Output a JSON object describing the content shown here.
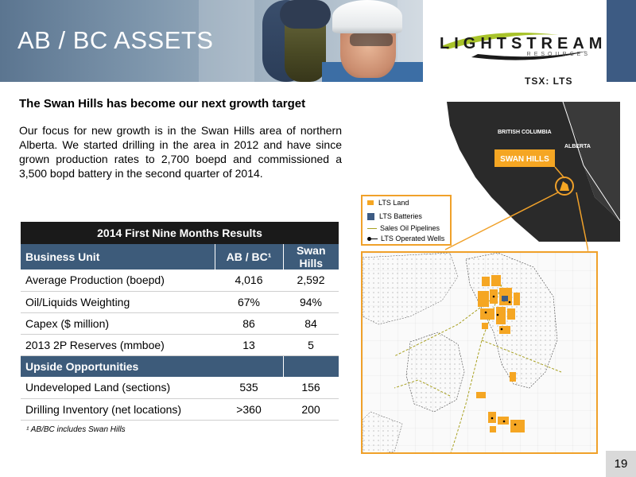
{
  "header": {
    "title": "AB / BC ASSETS",
    "logo_text": "LIGHTSTREAM",
    "logo_sub": "RESOURCES",
    "ticker": "TSX: LTS"
  },
  "subtitle": "The Swan Hills has become our next growth target",
  "intro": "Our focus for new growth is in the Swan Hills area of northern Alberta. We started drilling in the area in 2012 and have since grown production rates to 2,700 boepd and commissioned a 3,500 bopd battery in the second quarter of 2014.",
  "table": {
    "caption": "2014 First Nine Months Results",
    "columns": [
      "Business Unit",
      "AB / BC¹",
      "Swan Hills"
    ],
    "rows": [
      [
        "Average Production (boepd)",
        "4,016",
        "2,592"
      ],
      [
        "Oil/Liquids Weighting",
        "67%",
        "94%"
      ],
      [
        "Capex ($ million)",
        "86",
        "84"
      ],
      [
        "2013 2P Reserves (mmboe)",
        "13",
        "5"
      ]
    ],
    "section_label": "Upside Opportunities",
    "section_rows": [
      [
        "Undeveloped Land (sections)",
        "535",
        "156"
      ],
      [
        "Drilling Inventory (net locations)",
        ">360",
        "200"
      ]
    ]
  },
  "footnote": "¹ AB/BC includes Swan Hills",
  "map": {
    "provinces": [
      "BRITISH COLUMBIA",
      "ALBERTA"
    ],
    "region_label": "SWAN HILLS",
    "legend": [
      "LTS Land",
      "LTS Batteries",
      "Sales Oil Pipelines",
      "LTS Operated Wells"
    ],
    "colors": {
      "land": "#f5a623",
      "battery": "#3d5b83",
      "pipeline": "#a8a020",
      "accent": "#f0a12a",
      "province": "#2a2a2a"
    }
  },
  "page_number": "19"
}
